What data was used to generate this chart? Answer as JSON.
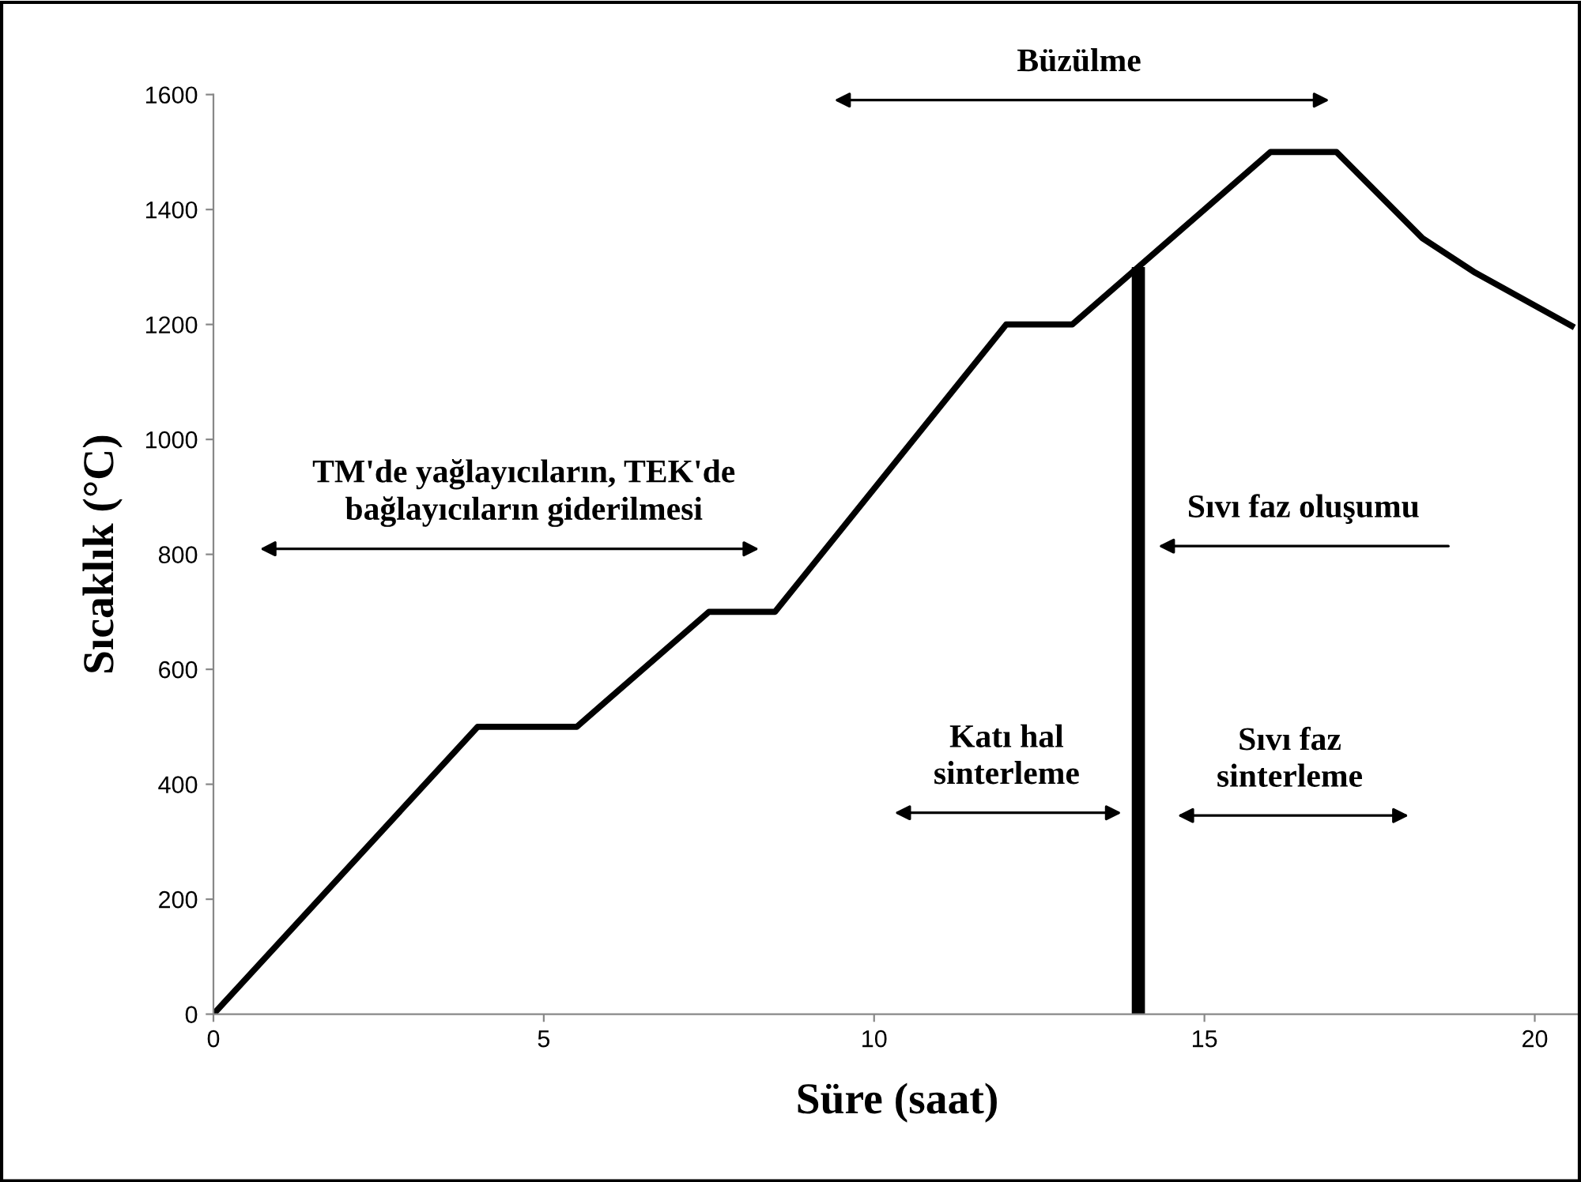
{
  "chart_data": {
    "type": "line",
    "xlabel": "Süre (saat)",
    "ylabel": "Sıcaklık (°C)",
    "series": [
      {
        "color": "#000000",
        "x": [
          0,
          4,
          5.5,
          7.5,
          8.5,
          12,
          13,
          16,
          17,
          18.3,
          19.1,
          20.6
        ],
        "values": [
          0,
          500,
          500,
          700,
          700,
          1200,
          1200,
          1500,
          1500,
          1350,
          1290,
          1195
        ]
      },
      {
        "color": "#000000",
        "x": [
          14,
          14
        ],
        "values": [
          0,
          1300
        ]
      }
    ],
    "xlim": [
      0,
      20.7
    ],
    "xticks": [
      0,
      5,
      10,
      15,
      20
    ],
    "ylim": [
      0,
      1600
    ],
    "yticks": [
      0,
      200,
      400,
      600,
      800,
      1000,
      1200,
      1400,
      1600
    ],
    "grid": false,
    "marker": "none",
    "line_style": "solid",
    "annotations": [
      "TM'de yağlayıcıların, TEK'de\nbağlayıcıların giderilmesi",
      "Büzülme",
      "Sıvı faz oluşumu",
      "Katı hal\nsinterleme",
      "Sıvı faz\nsinterleme"
    ]
  }
}
